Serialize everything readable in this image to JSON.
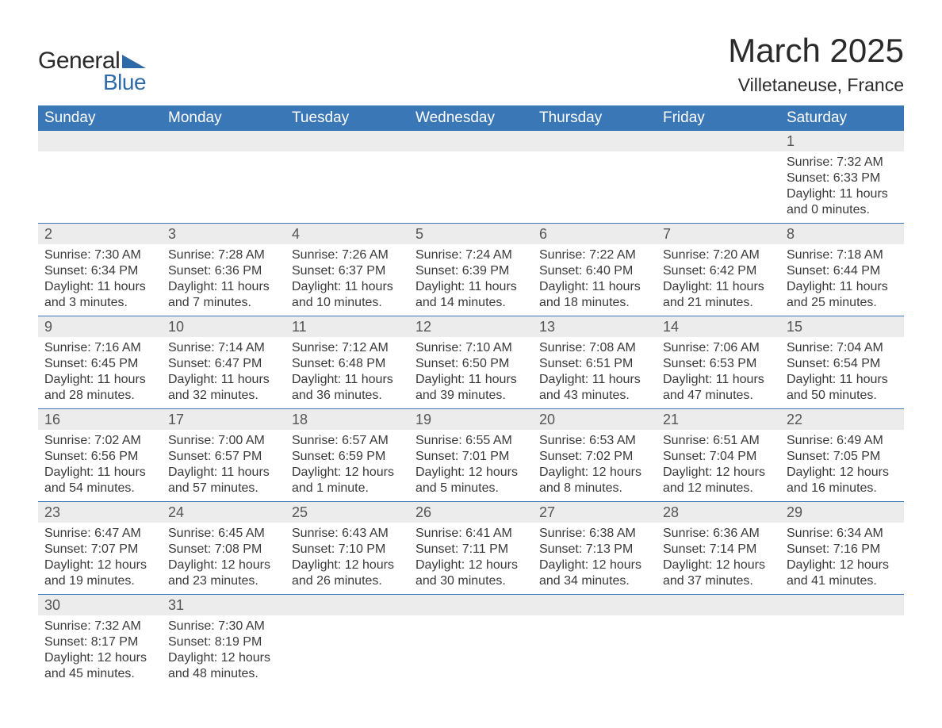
{
  "brand": {
    "part1": "General",
    "part2": "Blue",
    "text_color": "#2a2a2a",
    "accent_color": "#2f6aa8"
  },
  "title": "March 2025",
  "location": "Villetaneuse, France",
  "colors": {
    "header_bg": "#3a77b6",
    "header_text": "#ffffff",
    "daynum_bg": "#ececec",
    "daynum_text": "#555555",
    "body_text": "#3a3a3a",
    "row_border": "#3a77b6",
    "page_bg": "#ffffff"
  },
  "fonts": {
    "title_size_pt": 32,
    "location_size_pt": 17,
    "header_size_pt": 14,
    "daynum_size_pt": 14,
    "body_size_pt": 12
  },
  "day_names": [
    "Sunday",
    "Monday",
    "Tuesday",
    "Wednesday",
    "Thursday",
    "Friday",
    "Saturday"
  ],
  "weeks": [
    [
      {
        "empty": true
      },
      {
        "empty": true
      },
      {
        "empty": true
      },
      {
        "empty": true
      },
      {
        "empty": true
      },
      {
        "empty": true
      },
      {
        "day": "1",
        "sunrise": "Sunrise: 7:32 AM",
        "sunset": "Sunset: 6:33 PM",
        "daylight1": "Daylight: 11 hours",
        "daylight2": "and 0 minutes."
      }
    ],
    [
      {
        "day": "2",
        "sunrise": "Sunrise: 7:30 AM",
        "sunset": "Sunset: 6:34 PM",
        "daylight1": "Daylight: 11 hours",
        "daylight2": "and 3 minutes."
      },
      {
        "day": "3",
        "sunrise": "Sunrise: 7:28 AM",
        "sunset": "Sunset: 6:36 PM",
        "daylight1": "Daylight: 11 hours",
        "daylight2": "and 7 minutes."
      },
      {
        "day": "4",
        "sunrise": "Sunrise: 7:26 AM",
        "sunset": "Sunset: 6:37 PM",
        "daylight1": "Daylight: 11 hours",
        "daylight2": "and 10 minutes."
      },
      {
        "day": "5",
        "sunrise": "Sunrise: 7:24 AM",
        "sunset": "Sunset: 6:39 PM",
        "daylight1": "Daylight: 11 hours",
        "daylight2": "and 14 minutes."
      },
      {
        "day": "6",
        "sunrise": "Sunrise: 7:22 AM",
        "sunset": "Sunset: 6:40 PM",
        "daylight1": "Daylight: 11 hours",
        "daylight2": "and 18 minutes."
      },
      {
        "day": "7",
        "sunrise": "Sunrise: 7:20 AM",
        "sunset": "Sunset: 6:42 PM",
        "daylight1": "Daylight: 11 hours",
        "daylight2": "and 21 minutes."
      },
      {
        "day": "8",
        "sunrise": "Sunrise: 7:18 AM",
        "sunset": "Sunset: 6:44 PM",
        "daylight1": "Daylight: 11 hours",
        "daylight2": "and 25 minutes."
      }
    ],
    [
      {
        "day": "9",
        "sunrise": "Sunrise: 7:16 AM",
        "sunset": "Sunset: 6:45 PM",
        "daylight1": "Daylight: 11 hours",
        "daylight2": "and 28 minutes."
      },
      {
        "day": "10",
        "sunrise": "Sunrise: 7:14 AM",
        "sunset": "Sunset: 6:47 PM",
        "daylight1": "Daylight: 11 hours",
        "daylight2": "and 32 minutes."
      },
      {
        "day": "11",
        "sunrise": "Sunrise: 7:12 AM",
        "sunset": "Sunset: 6:48 PM",
        "daylight1": "Daylight: 11 hours",
        "daylight2": "and 36 minutes."
      },
      {
        "day": "12",
        "sunrise": "Sunrise: 7:10 AM",
        "sunset": "Sunset: 6:50 PM",
        "daylight1": "Daylight: 11 hours",
        "daylight2": "and 39 minutes."
      },
      {
        "day": "13",
        "sunrise": "Sunrise: 7:08 AM",
        "sunset": "Sunset: 6:51 PM",
        "daylight1": "Daylight: 11 hours",
        "daylight2": "and 43 minutes."
      },
      {
        "day": "14",
        "sunrise": "Sunrise: 7:06 AM",
        "sunset": "Sunset: 6:53 PM",
        "daylight1": "Daylight: 11 hours",
        "daylight2": "and 47 minutes."
      },
      {
        "day": "15",
        "sunrise": "Sunrise: 7:04 AM",
        "sunset": "Sunset: 6:54 PM",
        "daylight1": "Daylight: 11 hours",
        "daylight2": "and 50 minutes."
      }
    ],
    [
      {
        "day": "16",
        "sunrise": "Sunrise: 7:02 AM",
        "sunset": "Sunset: 6:56 PM",
        "daylight1": "Daylight: 11 hours",
        "daylight2": "and 54 minutes."
      },
      {
        "day": "17",
        "sunrise": "Sunrise: 7:00 AM",
        "sunset": "Sunset: 6:57 PM",
        "daylight1": "Daylight: 11 hours",
        "daylight2": "and 57 minutes."
      },
      {
        "day": "18",
        "sunrise": "Sunrise: 6:57 AM",
        "sunset": "Sunset: 6:59 PM",
        "daylight1": "Daylight: 12 hours",
        "daylight2": "and 1 minute."
      },
      {
        "day": "19",
        "sunrise": "Sunrise: 6:55 AM",
        "sunset": "Sunset: 7:01 PM",
        "daylight1": "Daylight: 12 hours",
        "daylight2": "and 5 minutes."
      },
      {
        "day": "20",
        "sunrise": "Sunrise: 6:53 AM",
        "sunset": "Sunset: 7:02 PM",
        "daylight1": "Daylight: 12 hours",
        "daylight2": "and 8 minutes."
      },
      {
        "day": "21",
        "sunrise": "Sunrise: 6:51 AM",
        "sunset": "Sunset: 7:04 PM",
        "daylight1": "Daylight: 12 hours",
        "daylight2": "and 12 minutes."
      },
      {
        "day": "22",
        "sunrise": "Sunrise: 6:49 AM",
        "sunset": "Sunset: 7:05 PM",
        "daylight1": "Daylight: 12 hours",
        "daylight2": "and 16 minutes."
      }
    ],
    [
      {
        "day": "23",
        "sunrise": "Sunrise: 6:47 AM",
        "sunset": "Sunset: 7:07 PM",
        "daylight1": "Daylight: 12 hours",
        "daylight2": "and 19 minutes."
      },
      {
        "day": "24",
        "sunrise": "Sunrise: 6:45 AM",
        "sunset": "Sunset: 7:08 PM",
        "daylight1": "Daylight: 12 hours",
        "daylight2": "and 23 minutes."
      },
      {
        "day": "25",
        "sunrise": "Sunrise: 6:43 AM",
        "sunset": "Sunset: 7:10 PM",
        "daylight1": "Daylight: 12 hours",
        "daylight2": "and 26 minutes."
      },
      {
        "day": "26",
        "sunrise": "Sunrise: 6:41 AM",
        "sunset": "Sunset: 7:11 PM",
        "daylight1": "Daylight: 12 hours",
        "daylight2": "and 30 minutes."
      },
      {
        "day": "27",
        "sunrise": "Sunrise: 6:38 AM",
        "sunset": "Sunset: 7:13 PM",
        "daylight1": "Daylight: 12 hours",
        "daylight2": "and 34 minutes."
      },
      {
        "day": "28",
        "sunrise": "Sunrise: 6:36 AM",
        "sunset": "Sunset: 7:14 PM",
        "daylight1": "Daylight: 12 hours",
        "daylight2": "and 37 minutes."
      },
      {
        "day": "29",
        "sunrise": "Sunrise: 6:34 AM",
        "sunset": "Sunset: 7:16 PM",
        "daylight1": "Daylight: 12 hours",
        "daylight2": "and 41 minutes."
      }
    ],
    [
      {
        "day": "30",
        "sunrise": "Sunrise: 7:32 AM",
        "sunset": "Sunset: 8:17 PM",
        "daylight1": "Daylight: 12 hours",
        "daylight2": "and 45 minutes."
      },
      {
        "day": "31",
        "sunrise": "Sunrise: 7:30 AM",
        "sunset": "Sunset: 8:19 PM",
        "daylight1": "Daylight: 12 hours",
        "daylight2": "and 48 minutes."
      },
      {
        "empty": true
      },
      {
        "empty": true
      },
      {
        "empty": true
      },
      {
        "empty": true
      },
      {
        "empty": true
      }
    ]
  ]
}
